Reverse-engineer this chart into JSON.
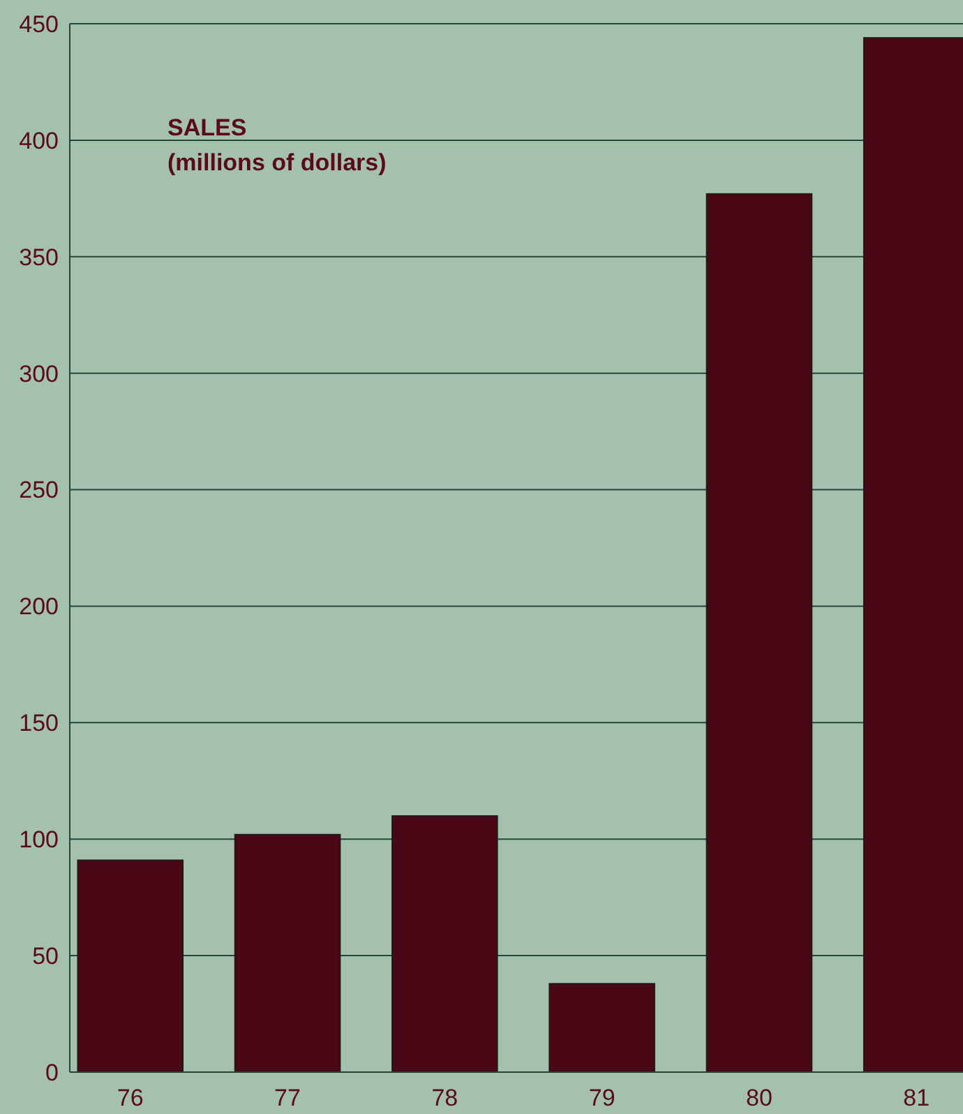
{
  "chart_data": {
    "type": "bar",
    "title": "SALES",
    "subtitle": "(millions of dollars)",
    "categories": [
      "76",
      "77",
      "78",
      "79",
      "80",
      "81"
    ],
    "values": [
      91,
      102,
      110,
      38,
      377,
      444
    ],
    "color": "#4a0716",
    "ylim": [
      0,
      450
    ],
    "yticks": [
      0,
      50,
      100,
      150,
      200,
      250,
      300,
      350,
      400,
      450
    ],
    "grid": "y"
  }
}
